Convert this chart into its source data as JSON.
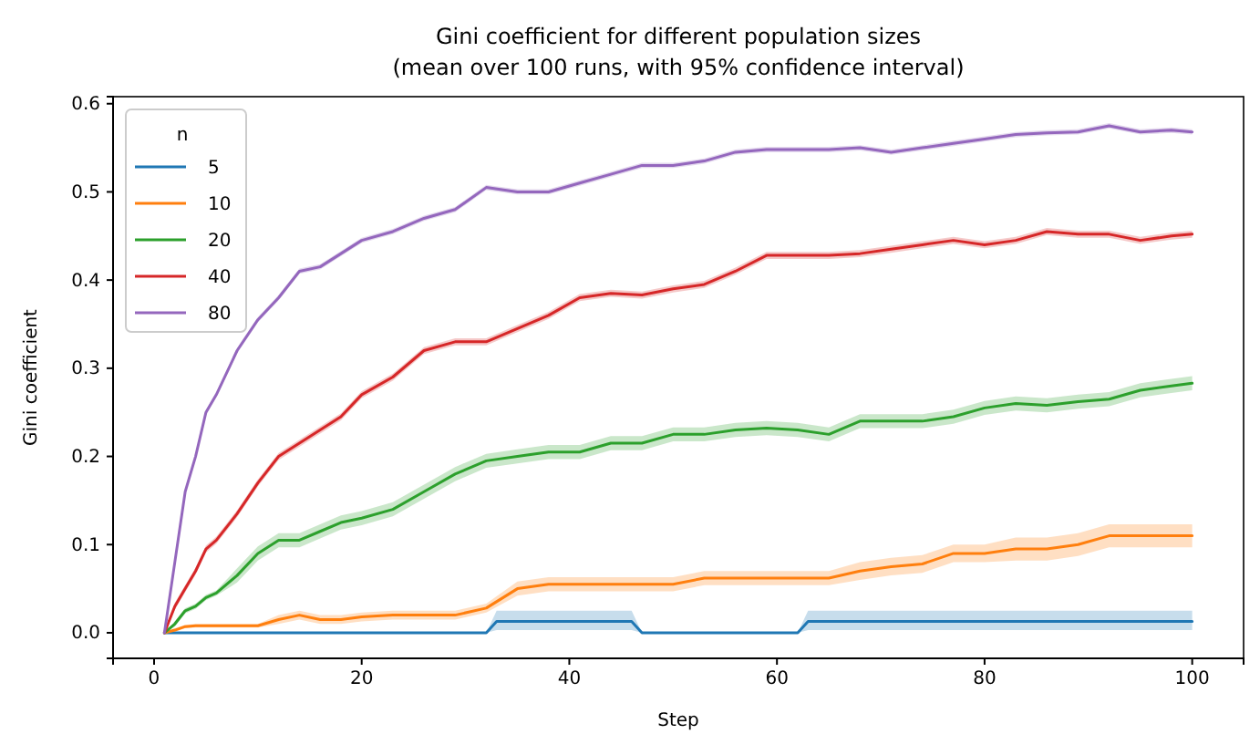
{
  "chart_data": {
    "type": "line",
    "title": "Gini coefficient for different population sizes\n(mean over 100 runs, with 95% confidence interval)",
    "xlabel": "Step",
    "ylabel": "Gini coefficient",
    "legend_title": "n",
    "legend": "top left",
    "grid": false,
    "line_style": "solid",
    "marker": "none",
    "xlim": [
      -3.95,
      104.95
    ],
    "xticks": [
      0,
      20,
      40,
      60,
      80,
      100
    ],
    "ylim": [
      -0.029,
      0.608
    ],
    "yticks": [
      {
        "value": 0,
        "label": "0.0"
      },
      {
        "value": 0.1,
        "label": "0.1"
      },
      {
        "value": 0.2,
        "label": "0.2"
      },
      {
        "value": 0.3,
        "label": "0.3"
      },
      {
        "value": 0.4,
        "label": "0.4"
      },
      {
        "value": 0.5,
        "label": "0.5"
      },
      {
        "value": 0.6,
        "label": "0.6"
      }
    ],
    "x": [
      1,
      2,
      3,
      4,
      5,
      6,
      8,
      10,
      12,
      14,
      16,
      18,
      20,
      23,
      26,
      29,
      32,
      35,
      38,
      41,
      44,
      47,
      50,
      53,
      56,
      59,
      62,
      65,
      68,
      71,
      74,
      77,
      80,
      83,
      86,
      89,
      92,
      95,
      98,
      100
    ],
    "series": [
      {
        "name": "5",
        "color": "#1f77b4",
        "x": [
          1,
          32,
          33,
          46,
          47,
          62,
          63,
          100
        ],
        "values": [
          0,
          0,
          0.013,
          0.013,
          0,
          0,
          0.013,
          0.013
        ],
        "lower": [
          0,
          0,
          0.003,
          0.003,
          0,
          0,
          0.003,
          0.003
        ],
        "upper": [
          0,
          0,
          0.025,
          0.025,
          0,
          0,
          0.025,
          0.025
        ]
      },
      {
        "name": "10",
        "color": "#ff7f0e",
        "values": [
          0,
          0.003,
          0.007,
          0.008,
          0.008,
          0.008,
          0.008,
          0.008,
          0.015,
          0.02,
          0.015,
          0.015,
          0.018,
          0.02,
          0.02,
          0.02,
          0.028,
          0.05,
          0.055,
          0.055,
          0.055,
          0.055,
          0.055,
          0.062,
          0.062,
          0.062,
          0.062,
          0.062,
          0.07,
          0.075,
          0.078,
          0.09,
          0.09,
          0.095,
          0.095,
          0.1,
          0.11,
          0.11,
          0.11,
          0.11
        ],
        "lower": [
          0,
          0.001,
          0.005,
          0.006,
          0.006,
          0.006,
          0.006,
          0.006,
          0.01,
          0.015,
          0.01,
          0.01,
          0.013,
          0.015,
          0.015,
          0.015,
          0.023,
          0.042,
          0.047,
          0.047,
          0.047,
          0.047,
          0.047,
          0.054,
          0.054,
          0.054,
          0.054,
          0.054,
          0.06,
          0.065,
          0.068,
          0.08,
          0.08,
          0.082,
          0.082,
          0.087,
          0.097,
          0.097,
          0.097,
          0.097
        ],
        "upper": [
          0,
          0.005,
          0.009,
          0.01,
          0.01,
          0.01,
          0.01,
          0.01,
          0.02,
          0.025,
          0.02,
          0.02,
          0.023,
          0.025,
          0.025,
          0.025,
          0.033,
          0.058,
          0.063,
          0.063,
          0.063,
          0.063,
          0.063,
          0.07,
          0.07,
          0.07,
          0.07,
          0.07,
          0.08,
          0.085,
          0.088,
          0.1,
          0.1,
          0.108,
          0.108,
          0.113,
          0.123,
          0.123,
          0.123,
          0.123
        ]
      },
      {
        "name": "20",
        "color": "#2ca02c",
        "values": [
          0,
          0.01,
          0.025,
          0.03,
          0.04,
          0.045,
          0.065,
          0.09,
          0.105,
          0.105,
          0.115,
          0.125,
          0.13,
          0.14,
          0.16,
          0.18,
          0.195,
          0.2,
          0.205,
          0.205,
          0.215,
          0.215,
          0.225,
          0.225,
          0.23,
          0.232,
          0.23,
          0.225,
          0.24,
          0.24,
          0.24,
          0.245,
          0.255,
          0.26,
          0.258,
          0.262,
          0.265,
          0.275,
          0.28,
          0.283
        ],
        "lower": [
          0,
          0.007,
          0.022,
          0.027,
          0.037,
          0.042,
          0.057,
          0.082,
          0.097,
          0.097,
          0.107,
          0.117,
          0.122,
          0.132,
          0.152,
          0.172,
          0.187,
          0.192,
          0.197,
          0.197,
          0.207,
          0.207,
          0.217,
          0.217,
          0.222,
          0.224,
          0.222,
          0.217,
          0.232,
          0.232,
          0.232,
          0.237,
          0.247,
          0.252,
          0.25,
          0.254,
          0.257,
          0.267,
          0.272,
          0.275
        ],
        "upper": [
          0,
          0.013,
          0.028,
          0.033,
          0.043,
          0.048,
          0.073,
          0.098,
          0.113,
          0.113,
          0.123,
          0.133,
          0.138,
          0.148,
          0.168,
          0.188,
          0.203,
          0.208,
          0.213,
          0.213,
          0.223,
          0.223,
          0.233,
          0.233,
          0.238,
          0.24,
          0.238,
          0.233,
          0.248,
          0.248,
          0.248,
          0.253,
          0.263,
          0.268,
          0.266,
          0.27,
          0.273,
          0.283,
          0.288,
          0.291
        ]
      },
      {
        "name": "40",
        "color": "#d62728",
        "values": [
          0,
          0.03,
          0.05,
          0.07,
          0.095,
          0.105,
          0.135,
          0.17,
          0.2,
          0.215,
          0.23,
          0.245,
          0.27,
          0.29,
          0.32,
          0.33,
          0.33,
          0.345,
          0.36,
          0.38,
          0.385,
          0.383,
          0.39,
          0.395,
          0.41,
          0.428,
          0.428,
          0.428,
          0.43,
          0.435,
          0.44,
          0.445,
          0.44,
          0.445,
          0.455,
          0.452,
          0.452,
          0.445,
          0.45,
          0.452
        ],
        "lower": [
          0,
          0.026,
          0.046,
          0.066,
          0.091,
          0.101,
          0.131,
          0.166,
          0.196,
          0.211,
          0.226,
          0.241,
          0.266,
          0.286,
          0.316,
          0.326,
          0.326,
          0.341,
          0.356,
          0.376,
          0.381,
          0.379,
          0.386,
          0.391,
          0.406,
          0.424,
          0.424,
          0.424,
          0.426,
          0.431,
          0.436,
          0.441,
          0.436,
          0.441,
          0.451,
          0.448,
          0.448,
          0.441,
          0.446,
          0.448
        ],
        "upper": [
          0,
          0.034,
          0.054,
          0.074,
          0.099,
          0.109,
          0.139,
          0.174,
          0.204,
          0.219,
          0.234,
          0.249,
          0.274,
          0.294,
          0.324,
          0.334,
          0.334,
          0.349,
          0.364,
          0.384,
          0.389,
          0.387,
          0.394,
          0.399,
          0.414,
          0.432,
          0.432,
          0.432,
          0.434,
          0.439,
          0.444,
          0.449,
          0.444,
          0.449,
          0.459,
          0.456,
          0.456,
          0.449,
          0.454,
          0.456
        ]
      },
      {
        "name": "80",
        "color": "#9467bd",
        "values": [
          0,
          0.08,
          0.16,
          0.2,
          0.25,
          0.27,
          0.32,
          0.355,
          0.38,
          0.41,
          0.415,
          0.43,
          0.445,
          0.455,
          0.47,
          0.48,
          0.505,
          0.5,
          0.5,
          0.51,
          0.52,
          0.53,
          0.53,
          0.535,
          0.545,
          0.548,
          0.548,
          0.548,
          0.55,
          0.545,
          0.55,
          0.555,
          0.56,
          0.565,
          0.567,
          0.568,
          0.575,
          0.568,
          0.57,
          0.568
        ],
        "lower": [
          0,
          0.077,
          0.157,
          0.197,
          0.247,
          0.267,
          0.317,
          0.352,
          0.377,
          0.407,
          0.412,
          0.427,
          0.442,
          0.452,
          0.467,
          0.477,
          0.502,
          0.497,
          0.497,
          0.507,
          0.517,
          0.527,
          0.527,
          0.532,
          0.542,
          0.545,
          0.545,
          0.545,
          0.547,
          0.542,
          0.547,
          0.552,
          0.557,
          0.562,
          0.564,
          0.565,
          0.572,
          0.565,
          0.567,
          0.565
        ],
        "upper": [
          0,
          0.083,
          0.163,
          0.203,
          0.253,
          0.273,
          0.323,
          0.358,
          0.383,
          0.413,
          0.418,
          0.433,
          0.448,
          0.458,
          0.473,
          0.483,
          0.508,
          0.503,
          0.503,
          0.513,
          0.523,
          0.533,
          0.533,
          0.538,
          0.548,
          0.551,
          0.551,
          0.551,
          0.553,
          0.548,
          0.553,
          0.558,
          0.563,
          0.568,
          0.57,
          0.571,
          0.578,
          0.571,
          0.573,
          0.571
        ]
      }
    ]
  }
}
